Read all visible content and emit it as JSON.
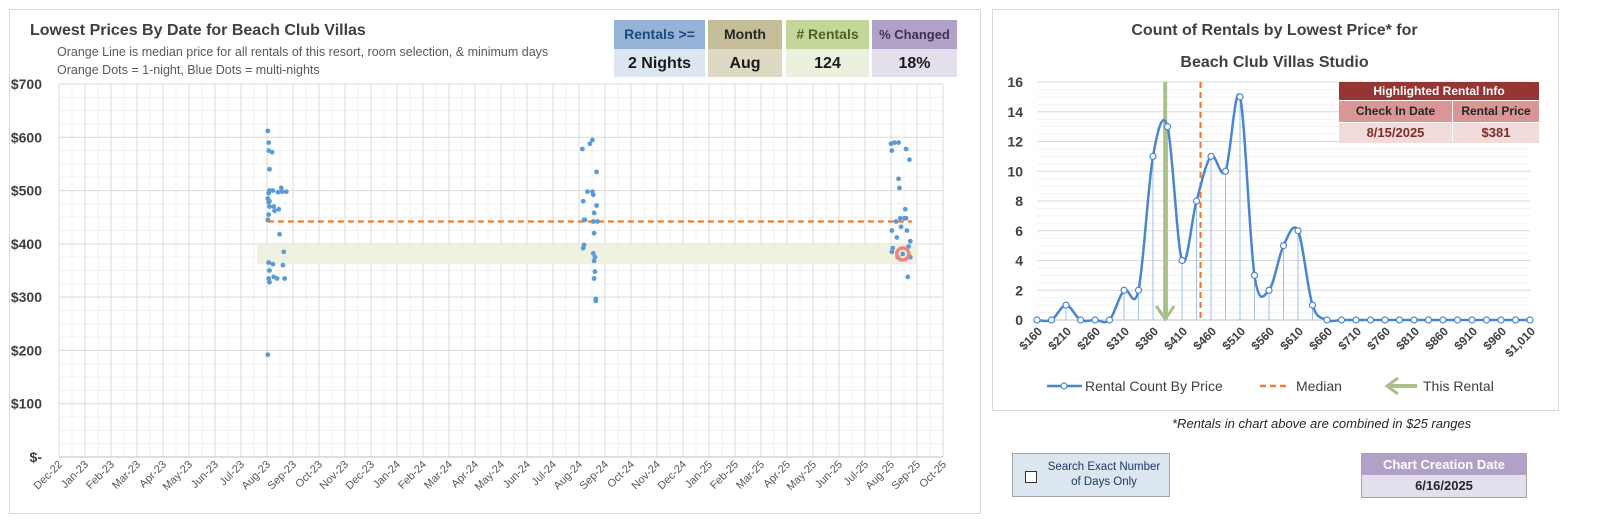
{
  "left": {
    "title": "Lowest Prices By Date for Beach Club Villas",
    "subtitle_1": "Orange Line is median price for all rentals of this resort, room selection, & minimum days",
    "subtitle_2": "Orange Dots = 1-night, Blue Dots = multi-nights"
  },
  "kpis": [
    {
      "label": "Rentals >=",
      "value": "2 Nights",
      "label_bg": "#95b3d7",
      "value_bg": "#dce6f1",
      "label_color": "#1f497d"
    },
    {
      "label": "Month",
      "value": "Aug",
      "label_bg": "#c4bd97",
      "value_bg": "#ddd9c4",
      "label_color": "#262626"
    },
    {
      "label": "# Rentals",
      "value": "124",
      "label_bg": "#c4d79b",
      "value_bg": "#ebf1de",
      "label_color": "#4f6228"
    },
    {
      "label": "% Changed",
      "value": "18%",
      "label_bg": "#b1a0c7",
      "value_bg": "#e4dfec",
      "label_color": "#3f3151"
    }
  ],
  "right": {
    "title_1": "Count of Rentals by Lowest Price* for",
    "title_2": "Beach Club Villas Studio",
    "highlight_header": "Highlighted Rental Info",
    "col1": "Check In Date",
    "col2": "Rental Price",
    "check_in": "8/15/2025",
    "price": "$381",
    "footnote": "*Rentals in chart above are combined in $25 ranges"
  },
  "controls": {
    "search_exact": "Search Exact Number of Days Only",
    "search_line1": "Search Exact Number",
    "search_line2": "of Days Only",
    "creation_label": "Chart Creation Date",
    "creation_date": "6/16/2025"
  },
  "chart_data": [
    {
      "type": "scatter",
      "title": "Lowest Prices By Date for Beach Club Villas",
      "x_ticks": [
        "Dec-22",
        "Jan-23",
        "Feb-23",
        "Mar-23",
        "Apr-23",
        "May-23",
        "Jun-23",
        "Jul-23",
        "Aug-23",
        "Sep-23",
        "Oct-23",
        "Nov-23",
        "Dec-23",
        "Jan-24",
        "Feb-24",
        "Mar-24",
        "Apr-24",
        "May-24",
        "Jun-24",
        "Jul-24",
        "Aug-24",
        "Sep-24",
        "Oct-24",
        "Nov-24",
        "Dec-24",
        "Jan-25",
        "Feb-25",
        "Mar-25",
        "Apr-25",
        "May-25",
        "Jun-25",
        "Jul-25",
        "Aug-25",
        "Sep-25",
        "Oct-25"
      ],
      "y_ticks": [
        "$-",
        "$100",
        "$200",
        "$300",
        "$400",
        "$500",
        "$600",
        "$700"
      ],
      "ylim": [
        0,
        700
      ],
      "grid": true,
      "median": 442,
      "highlight": {
        "x_date": "2025-08-15",
        "y": 381
      },
      "band": {
        "y_range": [
          362,
          400
        ],
        "x_range": [
          "2023-07-20",
          "2025-09-01"
        ]
      },
      "series": [
        {
          "name": "Blue Dots = multi-nights",
          "color": "#5b9bd5",
          "points": [
            [
              "2023-08-02",
              192
            ],
            [
              "2023-08-02",
              612
            ],
            [
              "2023-08-03",
              590
            ],
            [
              "2023-08-03",
              575
            ],
            [
              "2023-08-04",
              540
            ],
            [
              "2023-08-04",
              500
            ],
            [
              "2023-08-03",
              495
            ],
            [
              "2023-08-02",
              485
            ],
            [
              "2023-08-04",
              480
            ],
            [
              "2023-08-03",
              478
            ],
            [
              "2023-08-04",
              470
            ],
            [
              "2023-08-03",
              455
            ],
            [
              "2023-08-02",
              445
            ],
            [
              "2023-08-03",
              365
            ],
            [
              "2023-08-04",
              350
            ],
            [
              "2023-08-03",
              335
            ],
            [
              "2023-08-04",
              328
            ],
            [
              "2023-08-07",
              572
            ],
            [
              "2023-08-08",
              500
            ],
            [
              "2023-08-09",
              470
            ],
            [
              "2023-08-10",
              462
            ],
            [
              "2023-08-08",
              362
            ],
            [
              "2023-08-09",
              338
            ],
            [
              "2023-08-13",
              335
            ],
            [
              "2023-08-14",
              497
            ],
            [
              "2023-08-15",
              465
            ],
            [
              "2023-08-16",
              418
            ],
            [
              "2023-08-18",
              505
            ],
            [
              "2023-08-19",
              498
            ],
            [
              "2023-08-21",
              385
            ],
            [
              "2023-08-20",
              360
            ],
            [
              "2023-08-22",
              335
            ],
            [
              "2023-08-24",
              498
            ],
            [
              "2024-08-05",
              578
            ],
            [
              "2024-08-06",
              480
            ],
            [
              "2024-08-07",
              445
            ],
            [
              "2024-08-08",
              445
            ],
            [
              "2024-08-07",
              398
            ],
            [
              "2024-08-06",
              392
            ],
            [
              "2024-08-11",
              498
            ],
            [
              "2024-08-14",
              588
            ],
            [
              "2024-08-17",
              595
            ],
            [
              "2024-08-17",
              498
            ],
            [
              "2024-08-18",
              492
            ],
            [
              "2024-08-19",
              458
            ],
            [
              "2024-08-18",
              442
            ],
            [
              "2024-08-19",
              420
            ],
            [
              "2024-08-18",
              382
            ],
            [
              "2024-08-20",
              375
            ],
            [
              "2024-08-19",
              368
            ],
            [
              "2024-08-20",
              348
            ],
            [
              "2024-08-19",
              335
            ],
            [
              "2024-08-21",
              297
            ],
            [
              "2024-08-21",
              293
            ],
            [
              "2024-08-22",
              535
            ],
            [
              "2024-08-22",
              472
            ],
            [
              "2024-08-23",
              442
            ],
            [
              "2025-08-01",
              588
            ],
            [
              "2025-08-02",
              575
            ],
            [
              "2025-08-02",
              425
            ],
            [
              "2025-08-03",
              392
            ],
            [
              "2025-08-02",
              385
            ],
            [
              "2025-08-05",
              590
            ],
            [
              "2025-08-07",
              442
            ],
            [
              "2025-08-08",
              412
            ],
            [
              "2025-08-09",
              375
            ],
            [
              "2025-08-10",
              590
            ],
            [
              "2025-08-10",
              522
            ],
            [
              "2025-08-11",
              505
            ],
            [
              "2025-08-12",
              448
            ],
            [
              "2025-08-13",
              432
            ],
            [
              "2025-08-15",
              381
            ],
            [
              "2025-08-17",
              448
            ],
            [
              "2025-08-18",
              465
            ],
            [
              "2025-08-19",
              578
            ],
            [
              "2025-08-19",
              448
            ],
            [
              "2025-08-20",
              425
            ],
            [
              "2025-08-21",
              338
            ],
            [
              "2025-08-22",
              395
            ],
            [
              "2025-08-23",
              558
            ],
            [
              "2025-08-24",
              405
            ],
            [
              "2025-08-24",
              375
            ]
          ]
        }
      ]
    },
    {
      "type": "line",
      "title": "Count of Rentals by Lowest Price* for Beach Club Villas Studio",
      "x": [
        160,
        185,
        210,
        235,
        260,
        285,
        310,
        335,
        360,
        385,
        410,
        435,
        460,
        485,
        510,
        535,
        560,
        585,
        610,
        635,
        660,
        685,
        710,
        735,
        760,
        785,
        810,
        835,
        860,
        885,
        910,
        935,
        960,
        985,
        1010
      ],
      "x_tick_labels": [
        "$160",
        "$210",
        "$260",
        "$310",
        "$360",
        "$410",
        "$460",
        "$510",
        "$560",
        "$610",
        "$660",
        "$710",
        "$760",
        "$810",
        "$860",
        "$910",
        "$960",
        "$1,010"
      ],
      "ylim": [
        0,
        16
      ],
      "y_ticks": [
        0,
        2,
        4,
        6,
        8,
        10,
        12,
        14,
        16
      ],
      "series": [
        {
          "name": "Rental Count By Price",
          "color": "#4a86d0",
          "values": [
            0,
            0,
            1,
            0,
            0,
            0,
            2,
            2,
            11,
            13,
            4,
            8,
            11,
            10,
            15,
            3,
            2,
            5,
            6,
            1,
            0,
            0,
            0,
            0,
            0,
            0,
            0,
            0,
            0,
            0,
            0,
            0,
            0,
            0,
            0
          ]
        }
      ],
      "median": 442,
      "this_rental": 381,
      "legend": [
        "Rental Count By Price",
        "Median",
        "This Rental"
      ],
      "legend_position": "bottom"
    }
  ]
}
